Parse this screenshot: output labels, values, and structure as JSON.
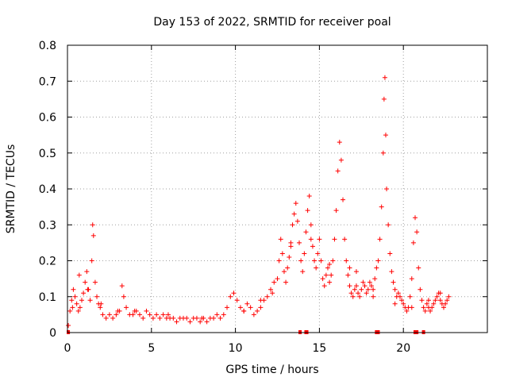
{
  "chart_data": {
    "type": "scatter",
    "title": "Day 153 of 2022, SRMTID for receiver poal",
    "xlabel": "GPS time / hours",
    "ylabel": "SRMTID / TECUs",
    "xlim": [
      0,
      25
    ],
    "ylim": [
      0,
      0.8
    ],
    "xticks": [
      0,
      5,
      10,
      15,
      20
    ],
    "yticks": [
      0,
      0.1,
      0.2,
      0.3,
      0.4,
      0.5,
      0.6,
      0.7,
      0.8
    ],
    "xtick_labels": [
      "0",
      "5",
      "10",
      "15",
      "20"
    ],
    "ytick_labels": [
      "0",
      "0.1",
      "0.2",
      "0.3",
      "0.4",
      "0.5",
      "0.6",
      "0.7",
      "0.8"
    ],
    "grid": true,
    "marker": "+",
    "color": "#ff0000",
    "series": [
      {
        "name": "SRMTID",
        "x": [
          0.05,
          0.15,
          0.25,
          0.35,
          0.45,
          0.55,
          0.65,
          0.75,
          0.85,
          0.95,
          1.05,
          1.15,
          1.25,
          1.35,
          1.45,
          1.5,
          1.55,
          1.65,
          1.75,
          1.85,
          1.95,
          2.1,
          2.3,
          2.5,
          2.7,
          2.9,
          3.1,
          3.25,
          3.35,
          3.5,
          3.7,
          3.9,
          4.1,
          4.3,
          4.5,
          4.7,
          4.9,
          5.1,
          5.3,
          5.5,
          5.7,
          5.9,
          6.1,
          6.3,
          6.5,
          6.7,
          6.9,
          7.1,
          7.3,
          7.5,
          7.7,
          7.9,
          8.1,
          8.3,
          8.5,
          8.7,
          8.9,
          9.1,
          9.3,
          9.5,
          9.7,
          9.9,
          10.1,
          10.3,
          10.5,
          10.7,
          10.9,
          11.1,
          11.3,
          11.5,
          11.7,
          11.9,
          12.1,
          12.3,
          12.5,
          12.6,
          12.7,
          12.8,
          12.9,
          13.0,
          13.1,
          13.2,
          13.3,
          13.4,
          13.5,
          13.6,
          13.7,
          13.8,
          13.9,
          14.0,
          14.1,
          14.2,
          14.3,
          14.4,
          14.5,
          14.6,
          14.7,
          14.8,
          14.9,
          15.0,
          15.1,
          15.2,
          15.3,
          15.4,
          15.5,
          15.6,
          15.7,
          15.8,
          15.9,
          16.0,
          16.1,
          16.2,
          16.3,
          16.4,
          16.5,
          16.6,
          16.7,
          16.8,
          16.9,
          17.0,
          17.1,
          17.2,
          17.3,
          17.4,
          17.5,
          17.6,
          17.7,
          17.8,
          17.9,
          18.0,
          18.1,
          18.2,
          18.3,
          18.4,
          18.5,
          18.6,
          18.7,
          18.8,
          18.85,
          18.9,
          18.95,
          19.0,
          19.1,
          19.2,
          19.3,
          19.4,
          19.5,
          19.6,
          19.7,
          19.8,
          19.9,
          20.0,
          20.1,
          20.2,
          20.3,
          20.4,
          20.5,
          20.6,
          20.7,
          20.8,
          20.9,
          21.0,
          21.1,
          21.2,
          21.3,
          21.4,
          21.5,
          21.6,
          21.7,
          21.8,
          21.9,
          22.0,
          22.1,
          22.2,
          22.3,
          22.4,
          22.5,
          22.6,
          22.7,
          0.3,
          0.7,
          1.2,
          2.0,
          3.0,
          4.0,
          6.0,
          8.0,
          10.5,
          11.5,
          12.2,
          13.3,
          14.5,
          15.6,
          16.8,
          17.2,
          18.2,
          19.5,
          20.5,
          21.5,
          22.2
        ],
        "y": [
          0.02,
          0.06,
          0.09,
          0.12,
          0.1,
          0.08,
          0.06,
          0.07,
          0.09,
          0.11,
          0.14,
          0.17,
          0.12,
          0.09,
          0.2,
          0.3,
          0.27,
          0.14,
          0.1,
          0.08,
          0.07,
          0.05,
          0.04,
          0.05,
          0.04,
          0.05,
          0.06,
          0.13,
          0.1,
          0.07,
          0.05,
          0.05,
          0.06,
          0.05,
          0.04,
          0.06,
          0.05,
          0.04,
          0.05,
          0.04,
          0.05,
          0.04,
          0.04,
          0.04,
          0.03,
          0.04,
          0.04,
          0.04,
          0.03,
          0.04,
          0.04,
          0.03,
          0.04,
          0.03,
          0.04,
          0.04,
          0.05,
          0.04,
          0.05,
          0.07,
          0.1,
          0.11,
          0.09,
          0.07,
          0.06,
          0.08,
          0.07,
          0.05,
          0.06,
          0.07,
          0.09,
          0.1,
          0.12,
          0.14,
          0.15,
          0.2,
          0.26,
          0.22,
          0.17,
          0.14,
          0.18,
          0.21,
          0.25,
          0.3,
          0.33,
          0.36,
          0.31,
          0.25,
          0.2,
          0.17,
          0.22,
          0.28,
          0.34,
          0.38,
          0.3,
          0.24,
          0.2,
          0.18,
          0.22,
          0.26,
          0.2,
          0.15,
          0.13,
          0.16,
          0.18,
          0.14,
          0.16,
          0.2,
          0.26,
          0.34,
          0.45,
          0.53,
          0.48,
          0.37,
          0.26,
          0.2,
          0.16,
          0.13,
          0.11,
          0.1,
          0.12,
          0.13,
          0.11,
          0.1,
          0.12,
          0.14,
          0.13,
          0.11,
          0.12,
          0.14,
          0.13,
          0.12,
          0.15,
          0.18,
          0.2,
          0.26,
          0.35,
          0.5,
          0.65,
          0.71,
          0.55,
          0.4,
          0.3,
          0.22,
          0.17,
          0.14,
          0.12,
          0.1,
          0.11,
          0.1,
          0.09,
          0.08,
          0.07,
          0.06,
          0.07,
          0.1,
          0.15,
          0.25,
          0.32,
          0.28,
          0.18,
          0.12,
          0.09,
          0.07,
          0.06,
          0.08,
          0.07,
          0.06,
          0.07,
          0.08,
          0.09,
          0.1,
          0.11,
          0.09,
          0.08,
          0.07,
          0.08,
          0.09,
          0.1,
          0.07,
          0.16,
          0.12,
          0.08,
          0.06,
          0.06,
          0.05,
          0.04,
          0.06,
          0.09,
          0.11,
          0.24,
          0.26,
          0.19,
          0.18,
          0.17,
          0.1,
          0.08,
          0.07,
          0.09,
          0.11
        ]
      }
    ],
    "zero_markers_x": [
      0.05,
      13.85,
      14.2,
      14.25,
      18.4,
      18.5,
      20.7,
      20.8,
      21.2
    ]
  }
}
